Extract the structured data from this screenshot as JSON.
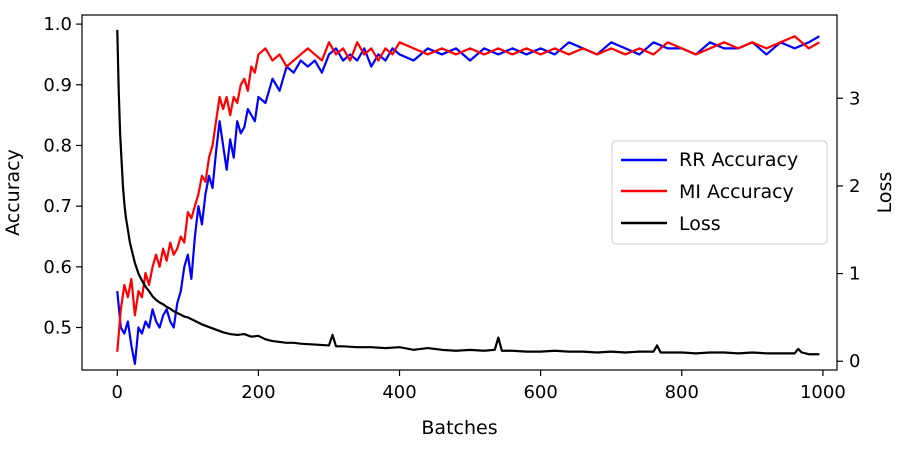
{
  "chart_data": {
    "type": "line",
    "title": "",
    "xlabel": "Batches",
    "ylabel": "Accuracy",
    "y2label": "Loss",
    "xlim": [
      -50,
      1020
    ],
    "ylim": [
      0.43,
      1.015
    ],
    "y2lim": [
      -0.1,
      3.95
    ],
    "x_ticks": [
      0,
      200,
      400,
      600,
      800,
      1000
    ],
    "y_ticks": [
      0.5,
      0.6,
      0.7,
      0.8,
      0.9,
      1.0
    ],
    "y2_ticks": [
      0,
      1,
      2,
      3
    ],
    "grid": false,
    "legend_position": "right",
    "series": [
      {
        "name": "RR Accuracy",
        "axis": "left",
        "color": "#0000ff",
        "x": [
          0,
          5,
          10,
          15,
          20,
          25,
          30,
          35,
          40,
          45,
          50,
          55,
          60,
          65,
          70,
          75,
          80,
          85,
          90,
          95,
          100,
          105,
          110,
          115,
          120,
          125,
          130,
          135,
          140,
          145,
          150,
          155,
          160,
          165,
          170,
          175,
          180,
          185,
          190,
          195,
          200,
          210,
          220,
          230,
          240,
          250,
          260,
          270,
          280,
          290,
          300,
          310,
          320,
          330,
          340,
          350,
          360,
          370,
          380,
          390,
          400,
          420,
          440,
          460,
          480,
          500,
          520,
          540,
          560,
          580,
          600,
          620,
          640,
          660,
          680,
          700,
          720,
          740,
          760,
          780,
          800,
          820,
          840,
          860,
          880,
          900,
          920,
          940,
          960,
          980,
          995
        ],
        "values": [
          0.56,
          0.5,
          0.49,
          0.51,
          0.47,
          0.44,
          0.5,
          0.49,
          0.51,
          0.5,
          0.53,
          0.51,
          0.5,
          0.52,
          0.53,
          0.51,
          0.5,
          0.54,
          0.56,
          0.6,
          0.62,
          0.58,
          0.65,
          0.7,
          0.67,
          0.72,
          0.75,
          0.73,
          0.79,
          0.84,
          0.8,
          0.76,
          0.81,
          0.78,
          0.84,
          0.82,
          0.83,
          0.86,
          0.85,
          0.84,
          0.88,
          0.87,
          0.91,
          0.89,
          0.93,
          0.92,
          0.94,
          0.93,
          0.94,
          0.92,
          0.95,
          0.96,
          0.94,
          0.95,
          0.94,
          0.96,
          0.93,
          0.95,
          0.94,
          0.96,
          0.95,
          0.94,
          0.96,
          0.95,
          0.96,
          0.94,
          0.96,
          0.95,
          0.96,
          0.95,
          0.96,
          0.95,
          0.97,
          0.96,
          0.95,
          0.97,
          0.96,
          0.95,
          0.97,
          0.96,
          0.96,
          0.95,
          0.97,
          0.96,
          0.96,
          0.97,
          0.95,
          0.97,
          0.96,
          0.97,
          0.98
        ]
      },
      {
        "name": "MI Accuracy",
        "axis": "left",
        "color": "#ff0000",
        "x": [
          0,
          5,
          10,
          15,
          20,
          25,
          30,
          35,
          40,
          45,
          50,
          55,
          60,
          65,
          70,
          75,
          80,
          85,
          90,
          95,
          100,
          105,
          110,
          115,
          120,
          125,
          130,
          135,
          140,
          145,
          150,
          155,
          160,
          165,
          170,
          175,
          180,
          185,
          190,
          195,
          200,
          210,
          220,
          230,
          240,
          250,
          260,
          270,
          280,
          290,
          300,
          310,
          320,
          330,
          340,
          350,
          360,
          370,
          380,
          390,
          400,
          420,
          440,
          460,
          480,
          500,
          520,
          540,
          560,
          580,
          600,
          620,
          640,
          660,
          680,
          700,
          720,
          740,
          760,
          780,
          800,
          820,
          840,
          860,
          880,
          900,
          920,
          940,
          960,
          980,
          995
        ],
        "values": [
          0.46,
          0.53,
          0.57,
          0.55,
          0.58,
          0.52,
          0.56,
          0.55,
          0.59,
          0.57,
          0.6,
          0.62,
          0.6,
          0.63,
          0.61,
          0.64,
          0.62,
          0.63,
          0.65,
          0.64,
          0.69,
          0.68,
          0.7,
          0.72,
          0.75,
          0.74,
          0.78,
          0.8,
          0.84,
          0.88,
          0.86,
          0.88,
          0.85,
          0.88,
          0.87,
          0.9,
          0.91,
          0.89,
          0.93,
          0.92,
          0.95,
          0.96,
          0.94,
          0.95,
          0.93,
          0.94,
          0.95,
          0.96,
          0.95,
          0.94,
          0.97,
          0.95,
          0.96,
          0.94,
          0.97,
          0.95,
          0.96,
          0.94,
          0.96,
          0.95,
          0.97,
          0.96,
          0.95,
          0.96,
          0.95,
          0.96,
          0.95,
          0.96,
          0.95,
          0.96,
          0.95,
          0.96,
          0.95,
          0.96,
          0.95,
          0.96,
          0.95,
          0.96,
          0.95,
          0.97,
          0.96,
          0.95,
          0.96,
          0.97,
          0.96,
          0.97,
          0.96,
          0.97,
          0.98,
          0.96,
          0.97
        ]
      },
      {
        "name": "Loss",
        "axis": "right",
        "color": "#000000",
        "x": [
          0,
          2,
          4,
          6,
          8,
          10,
          12,
          15,
          18,
          21,
          25,
          30,
          35,
          40,
          45,
          50,
          55,
          60,
          65,
          70,
          75,
          80,
          85,
          90,
          95,
          100,
          110,
          120,
          130,
          140,
          150,
          160,
          170,
          180,
          190,
          200,
          210,
          220,
          230,
          240,
          250,
          260,
          280,
          300,
          305,
          310,
          320,
          340,
          360,
          380,
          400,
          420,
          440,
          460,
          480,
          500,
          520,
          535,
          540,
          545,
          560,
          580,
          600,
          620,
          640,
          660,
          680,
          700,
          720,
          740,
          760,
          765,
          770,
          780,
          800,
          820,
          840,
          860,
          880,
          900,
          920,
          940,
          960,
          965,
          970,
          980,
          995
        ],
        "values": [
          3.78,
          3.1,
          2.6,
          2.3,
          2.0,
          1.8,
          1.65,
          1.5,
          1.35,
          1.25,
          1.12,
          1.0,
          0.92,
          0.85,
          0.8,
          0.74,
          0.7,
          0.67,
          0.65,
          0.62,
          0.6,
          0.57,
          0.55,
          0.53,
          0.51,
          0.5,
          0.46,
          0.42,
          0.39,
          0.36,
          0.33,
          0.31,
          0.3,
          0.31,
          0.28,
          0.29,
          0.25,
          0.23,
          0.22,
          0.21,
          0.21,
          0.2,
          0.19,
          0.18,
          0.3,
          0.17,
          0.17,
          0.16,
          0.16,
          0.15,
          0.16,
          0.13,
          0.15,
          0.13,
          0.12,
          0.13,
          0.12,
          0.13,
          0.27,
          0.12,
          0.12,
          0.11,
          0.11,
          0.12,
          0.11,
          0.11,
          0.1,
          0.11,
          0.1,
          0.11,
          0.11,
          0.18,
          0.1,
          0.1,
          0.1,
          0.09,
          0.1,
          0.1,
          0.09,
          0.1,
          0.09,
          0.09,
          0.09,
          0.14,
          0.1,
          0.08,
          0.08
        ]
      }
    ]
  }
}
